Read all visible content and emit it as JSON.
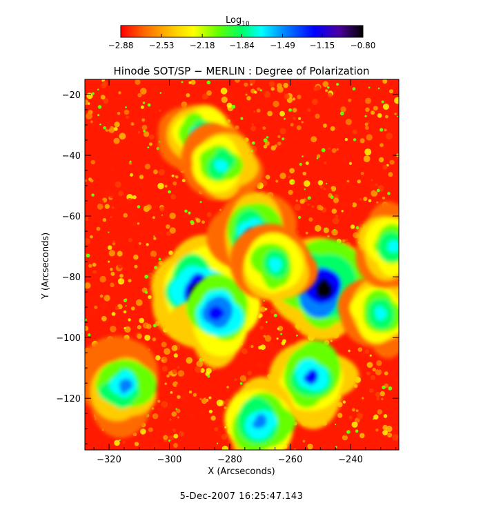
{
  "chart_data": {
    "type": "heatmap",
    "title": "Hinode SOT/SP − MERLIN : Degree of Polarization",
    "xlabel": "X (Arcseconds)",
    "ylabel": "Y (Arcseconds)",
    "xlim": [
      -328,
      -224
    ],
    "ylim": [
      -137,
      -15
    ],
    "x_ticks": [
      -320,
      -300,
      -280,
      -260,
      -240
    ],
    "x_tick_labels": [
      "−320",
      "−300",
      "−280",
      "−260",
      "−240"
    ],
    "y_ticks": [
      -20,
      -40,
      -60,
      -80,
      -100,
      -120
    ],
    "y_tick_labels": [
      "−20",
      "−40",
      "−60",
      "−80",
      "−100",
      "−120"
    ],
    "colorbar": {
      "label_base": "Log",
      "label_sub": "10",
      "range": [
        -2.88,
        -0.8
      ],
      "ticks": [
        -2.88,
        -2.53,
        -2.18,
        -1.84,
        -1.49,
        -1.15,
        -0.8
      ],
      "tick_labels": [
        "−2.88",
        "−2.53",
        "−2.18",
        "−1.84",
        "−1.49",
        "−1.15",
        "−0.80"
      ],
      "colormap": [
        "#ff0000",
        "#ff6a00",
        "#ffcc00",
        "#ffff00",
        "#66ff00",
        "#00ff66",
        "#00ffff",
        "#0080ff",
        "#0000ff",
        "#4b00a0",
        "#000000"
      ]
    },
    "high_polarization_regions": [
      {
        "x": -290,
        "y": -85,
        "value": -0.9
      },
      {
        "x": -284,
        "y": -92,
        "value": -1.2
      },
      {
        "x": -249,
        "y": -84,
        "value": -0.85
      },
      {
        "x": -290,
        "y": -33,
        "value": -1.6
      },
      {
        "x": -283,
        "y": -43,
        "value": -1.7
      },
      {
        "x": -273,
        "y": -66,
        "value": -1.5
      },
      {
        "x": -265,
        "y": -76,
        "value": -1.55
      },
      {
        "x": -253,
        "y": -113,
        "value": -1.3
      },
      {
        "x": -270,
        "y": -128,
        "value": -1.4
      },
      {
        "x": -230,
        "y": -92,
        "value": -1.6
      },
      {
        "x": -226,
        "y": -70,
        "value": -1.6
      },
      {
        "x": -315,
        "y": -116,
        "value": -1.5
      }
    ],
    "background_level": -2.8,
    "grid": false,
    "legend": "colorbar-top"
  },
  "footer": {
    "timestamp": "5-Dec-2007 16:25:47.143"
  }
}
